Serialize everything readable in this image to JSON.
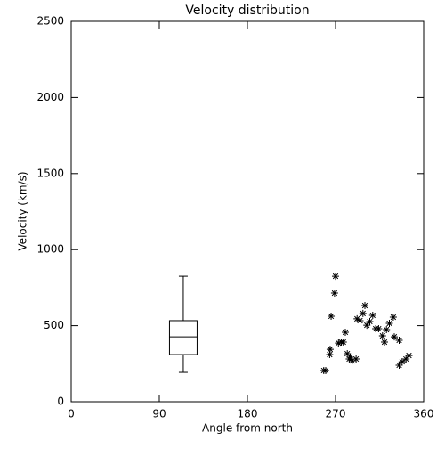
{
  "chart_data": {
    "type": "scatter",
    "title": "Velocity distribution",
    "x_label": "Angle from north",
    "y_label": "Velocity (km/s)",
    "xlim": [
      0,
      360
    ],
    "xticks": [
      0,
      90,
      180,
      270,
      360
    ],
    "ylim": [
      0,
      2500
    ],
    "yticks": [
      0,
      500,
      1000,
      1500,
      2000,
      2500
    ],
    "color": "#000000",
    "box": {
      "x": 114.5,
      "whislo": 193,
      "q1": 310,
      "med": 427,
      "q3": 533,
      "whishi": 825
    },
    "x": [
      258,
      260,
      264,
      265.5,
      264.5,
      269,
      270,
      273,
      276,
      278,
      280,
      282,
      284,
      285,
      287,
      291,
      292,
      295,
      298,
      300,
      302,
      305,
      308,
      311,
      314,
      318,
      320,
      322,
      325,
      329,
      330,
      335,
      335,
      338,
      342,
      345
    ],
    "values": [
      205,
      205,
      310,
      562,
      345,
      714,
      825,
      386,
      392,
      392,
      457,
      316,
      281,
      293,
      269,
      281,
      545,
      533,
      580,
      632,
      503,
      527,
      568,
      480,
      480,
      433,
      392,
      474,
      515,
      556,
      427,
      404,
      240,
      263,
      281,
      304
    ]
  }
}
